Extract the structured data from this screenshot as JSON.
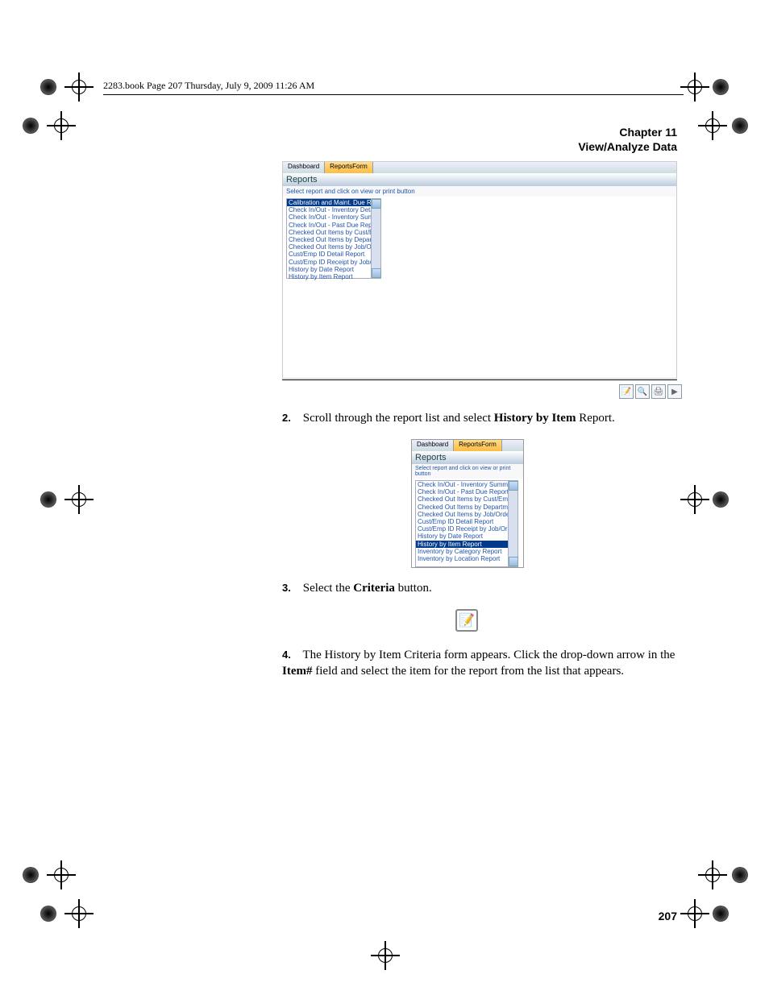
{
  "book_header": "2283.book  Page 207  Thursday, July 9, 2009  11:26 AM",
  "chapter_line1": "Chapter 11",
  "chapter_line2": "View/Analyze Data",
  "page_number": "207",
  "step2": {
    "num": "2.",
    "before": "Scroll through the report list and select ",
    "bold": "History by Item",
    "after": " Report."
  },
  "step3": {
    "num": "3.",
    "before": "Select the ",
    "bold": "Criteria",
    "after": " button."
  },
  "step4": {
    "num": "4.",
    "text_a": "The History by Item Criteria form appears. Click the drop-down arrow in the ",
    "bold": "Item#",
    "text_b": " field and select the item for the report from the list that appears."
  },
  "screenshot1": {
    "tab1": "Dashboard",
    "tab2": "ReportsForm",
    "title": "Reports",
    "subtitle": "Select report and click on view or print button",
    "items": [
      "Calibration and Maint. Due Report",
      "Check In/Out - Inventory Details",
      "Check In/Out - Inventory Summary",
      "Check In/Out - Past Due Report",
      "Checked Out Items by Cust/Emp ID",
      "Checked Out Items by Department",
      "Checked Out Items by Job/Order #",
      "Cust/Emp ID Detail Report",
      "Cust/Emp ID Receipt by Job/Order#",
      "History by Date Report",
      "History by Item Report"
    ],
    "selected_index": 0
  },
  "screenshot2": {
    "tab1": "Dashboard",
    "tab2": "ReportsForm",
    "title": "Reports",
    "subtitle": "Select report and click on view or print button",
    "items": [
      "Check In/Out - Inventory Summary",
      "Check In/Out - Past Due Report",
      "Checked Out Items by Cust/Emp ID",
      "Checked Out Items by Department",
      "Checked Out Items by Job/Order #",
      "Cust/Emp ID Detail Report",
      "Cust/Emp ID Receipt by Job/Order#",
      "History by Date Report",
      "History by Item Report",
      "Inventory by Category Report",
      "Inventory by Location Report"
    ],
    "selected_index": 8
  },
  "toolbar_icons": [
    "📝",
    "🔍",
    "🖨",
    "▶"
  ],
  "criteria_icon": "📝",
  "colors": {
    "link": "#2255aa",
    "sel_bg": "#003a8c",
    "tab_active1": "#ffdd88",
    "tab_active2": "#ffbb44"
  }
}
